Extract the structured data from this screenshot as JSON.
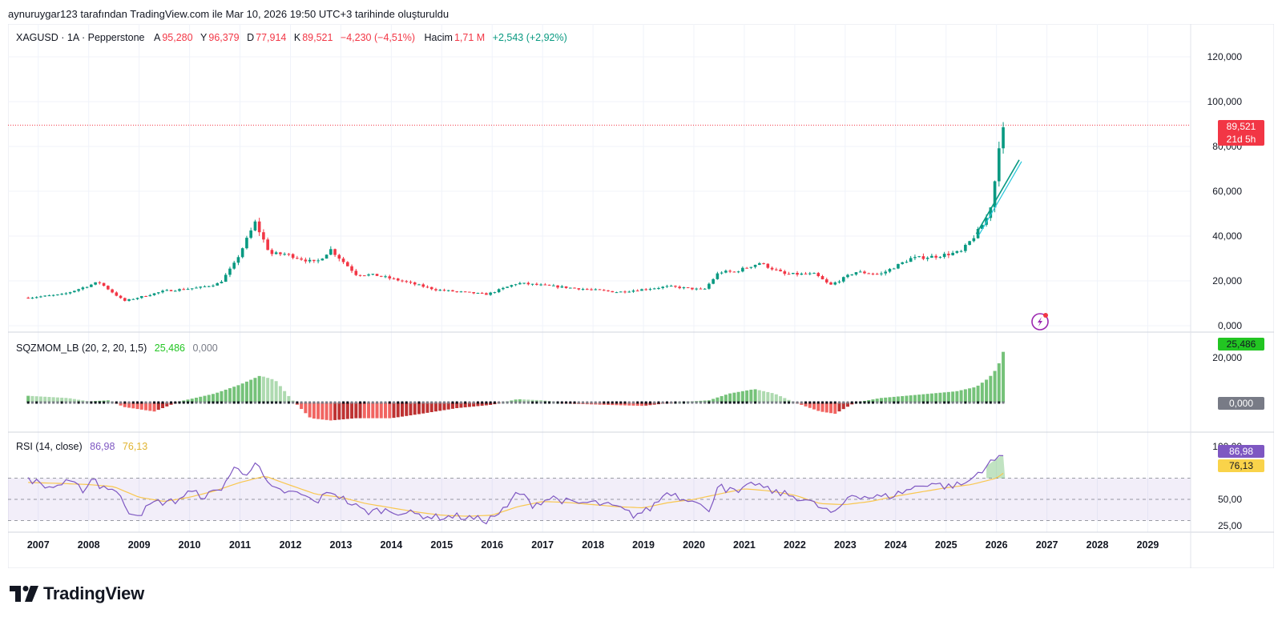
{
  "caption": "aynuruygar123 tarafından TradingView.com ile Mar 10, 2026 19:50 UTC+3 tarihinde oluşturuldu",
  "symbol": {
    "label": "XAGUSD · 1A · Pepperstone",
    "open_label": "A",
    "open": "95,280",
    "high_label": "Y",
    "high": "96,379",
    "low_label": "D",
    "low": "77,914",
    "close_label": "K",
    "close": "89,521",
    "change": "−4,230 (−4,51%)",
    "volume_label": "Hacim",
    "volume": "1,71 M",
    "volume_change": "+2,543 (+2,92%)"
  },
  "price_badge": {
    "price": "89,521",
    "countdown": "21d 5h"
  },
  "sqz": {
    "label": "SQZMOM_LB (20, 2, 20, 1,5)",
    "value": "25,486",
    "zero": "0,000",
    "badge_value": "25,486",
    "badge_zero": "0,000"
  },
  "rsi": {
    "label": "RSI (14, close)",
    "value": "86,98",
    "ma": "76,13",
    "badge_value": "86,98",
    "badge_ma": "76,13"
  },
  "brand": "TradingView",
  "colors": {
    "up": "#089981",
    "down": "#f23645",
    "rsi": "#7e57c2",
    "rsi_ma": "#e0b431",
    "sqz_lime": "#22c522"
  },
  "chart_data": [
    {
      "type": "candlestick",
      "title": "XAGUSD · 1A · Pepperstone",
      "interval": "1 month",
      "x_ticks": [
        "2007",
        "2008",
        "2009",
        "2010",
        "2011",
        "2012",
        "2013",
        "2014",
        "2015",
        "2016",
        "2017",
        "2018",
        "2019",
        "2020",
        "2021",
        "2022",
        "2023",
        "2024",
        "2025",
        "2026",
        "2027",
        "2028",
        "2029"
      ],
      "y_ticks": [
        "0,000",
        "20,000",
        "40,000",
        "60,000",
        "80,000",
        "100,000",
        "120,000"
      ],
      "ylim": [
        0,
        130
      ],
      "last_price": 89.521,
      "anchors": [
        [
          2006.8,
          12.5
        ],
        [
          2007.5,
          14
        ],
        [
          2008.2,
          19.5
        ],
        [
          2008.7,
          11
        ],
        [
          2009.5,
          15.5
        ],
        [
          2010.2,
          17
        ],
        [
          2010.6,
          19
        ],
        [
          2010.9,
          28
        ],
        [
          2011.3,
          46
        ],
        [
          2011.6,
          32
        ],
        [
          2011.9,
          32
        ],
        [
          2012.5,
          28
        ],
        [
          2012.8,
          34
        ],
        [
          2013.3,
          23
        ],
        [
          2013.7,
          22.5
        ],
        [
          2014.2,
          20
        ],
        [
          2014.9,
          16
        ],
        [
          2015.9,
          14
        ],
        [
          2016.5,
          19
        ],
        [
          2017.5,
          17
        ],
        [
          2018.5,
          15
        ],
        [
          2019.5,
          17.5
        ],
        [
          2020.2,
          16
        ],
        [
          2020.5,
          24
        ],
        [
          2020.8,
          24
        ],
        [
          2021.3,
          28
        ],
        [
          2021.8,
          23
        ],
        [
          2022.4,
          23
        ],
        [
          2022.7,
          18
        ],
        [
          2023.2,
          24
        ],
        [
          2023.7,
          23
        ],
        [
          2024.3,
          30
        ],
        [
          2024.8,
          31
        ],
        [
          2025.3,
          33
        ],
        [
          2025.6,
          41
        ],
        [
          2025.8,
          48
        ],
        [
          2025.95,
          58
        ],
        [
          2026.0,
          78
        ],
        [
          2026.08,
          83
        ],
        [
          2026.17,
          89.5
        ]
      ],
      "trendline": [
        [
          2025.6,
          41
        ],
        [
          2026.45,
          74
        ]
      ]
    },
    {
      "type": "bar",
      "title": "SQZMOM_LB (20, 2, 20, 1,5)",
      "y_ticks": [
        "0,000",
        "20,000"
      ],
      "last_value": 25.486,
      "anchors": [
        [
          2006.8,
          3
        ],
        [
          2007.6,
          2
        ],
        [
          2008.0,
          0.5
        ],
        [
          2008.4,
          1
        ],
        [
          2008.7,
          -2
        ],
        [
          2009.3,
          -4
        ],
        [
          2009.8,
          0.5
        ],
        [
          2010.5,
          4
        ],
        [
          2011.0,
          8
        ],
        [
          2011.4,
          12
        ],
        [
          2011.7,
          10
        ],
        [
          2012.0,
          2
        ],
        [
          2012.4,
          -7
        ],
        [
          2012.8,
          -8
        ],
        [
          2013.3,
          -7
        ],
        [
          2014.0,
          -7
        ],
        [
          2014.6,
          -5
        ],
        [
          2015.3,
          -2.5
        ],
        [
          2016.0,
          -1
        ],
        [
          2016.5,
          1.5
        ],
        [
          2017.0,
          1
        ],
        [
          2017.5,
          -0.5
        ],
        [
          2018.2,
          -1
        ],
        [
          2019.0,
          -1.5
        ],
        [
          2019.6,
          0
        ],
        [
          2020.3,
          1
        ],
        [
          2020.7,
          4
        ],
        [
          2021.2,
          6
        ],
        [
          2021.6,
          4
        ],
        [
          2022.0,
          0
        ],
        [
          2022.5,
          -4
        ],
        [
          2022.8,
          -5
        ],
        [
          2023.2,
          0
        ],
        [
          2023.7,
          2
        ],
        [
          2024.2,
          3
        ],
        [
          2024.7,
          4
        ],
        [
          2025.2,
          5
        ],
        [
          2025.6,
          7
        ],
        [
          2025.85,
          11
        ],
        [
          2026.0,
          15
        ],
        [
          2026.1,
          20
        ],
        [
          2026.17,
          25.5
        ]
      ]
    },
    {
      "type": "line",
      "title": "RSI (14, close)",
      "y_ticks": [
        "25,00",
        "50,00",
        "100,00"
      ],
      "bands": [
        30,
        70
      ],
      "last_value": 86.98,
      "last_ma": 76.13,
      "series": [
        {
          "name": "RSI",
          "anchors": [
            [
              2006.8,
              70
            ],
            [
              2007.2,
              61
            ],
            [
              2007.6,
              66
            ],
            [
              2007.9,
              59
            ],
            [
              2008.1,
              72
            ],
            [
              2008.2,
              63
            ],
            [
              2008.5,
              60
            ],
            [
              2008.8,
              39
            ],
            [
              2009.0,
              36
            ],
            [
              2009.3,
              47
            ],
            [
              2009.7,
              48
            ],
            [
              2010.0,
              57
            ],
            [
              2010.3,
              53
            ],
            [
              2010.6,
              59
            ],
            [
              2010.9,
              80
            ],
            [
              2011.1,
              74
            ],
            [
              2011.3,
              85
            ],
            [
              2011.6,
              60
            ],
            [
              2011.9,
              57
            ],
            [
              2012.2,
              55
            ],
            [
              2012.5,
              47
            ],
            [
              2012.8,
              58
            ],
            [
              2013.2,
              46
            ],
            [
              2013.5,
              38
            ],
            [
              2013.8,
              40
            ],
            [
              2014.2,
              38
            ],
            [
              2014.6,
              35
            ],
            [
              2014.9,
              33
            ],
            [
              2015.3,
              34
            ],
            [
              2015.9,
              30
            ],
            [
              2016.3,
              42
            ],
            [
              2016.5,
              58
            ],
            [
              2016.8,
              45
            ],
            [
              2017.2,
              52
            ],
            [
              2017.6,
              46
            ],
            [
              2018.0,
              47
            ],
            [
              2018.5,
              42
            ],
            [
              2018.8,
              35
            ],
            [
              2019.1,
              40
            ],
            [
              2019.5,
              58
            ],
            [
              2019.8,
              50
            ],
            [
              2020.0,
              52
            ],
            [
              2020.3,
              36
            ],
            [
              2020.5,
              70
            ],
            [
              2020.6,
              60
            ],
            [
              2020.9,
              56
            ],
            [
              2021.2,
              66
            ],
            [
              2021.5,
              58
            ],
            [
              2021.8,
              55
            ],
            [
              2022.2,
              50
            ],
            [
              2022.6,
              40
            ],
            [
              2022.8,
              36
            ],
            [
              2023.1,
              55
            ],
            [
              2023.5,
              52
            ],
            [
              2023.9,
              53
            ],
            [
              2024.3,
              60
            ],
            [
              2024.7,
              66
            ],
            [
              2025.0,
              62
            ],
            [
              2025.4,
              65
            ],
            [
              2025.7,
              78
            ],
            [
              2025.9,
              85
            ],
            [
              2026.05,
              90
            ],
            [
              2026.12,
              93
            ],
            [
              2026.17,
              87
            ]
          ]
        },
        {
          "name": "RSI-based MA",
          "anchors": [
            [
              2006.8,
              66
            ],
            [
              2007.5,
              65
            ],
            [
              2008.0,
              64
            ],
            [
              2008.5,
              62
            ],
            [
              2009.0,
              52
            ],
            [
              2009.5,
              48
            ],
            [
              2010.0,
              52
            ],
            [
              2010.5,
              58
            ],
            [
              2011.0,
              66
            ],
            [
              2011.5,
              72
            ],
            [
              2011.9,
              65
            ],
            [
              2012.5,
              55
            ],
            [
              2013.0,
              52
            ],
            [
              2013.5,
              46
            ],
            [
              2014.0,
              42
            ],
            [
              2014.5,
              38
            ],
            [
              2015.0,
              35
            ],
            [
              2015.5,
              34
            ],
            [
              2016.0,
              35
            ],
            [
              2016.5,
              43
            ],
            [
              2017.0,
              48
            ],
            [
              2017.5,
              47
            ],
            [
              2018.0,
              45
            ],
            [
              2018.5,
              43
            ],
            [
              2019.0,
              42
            ],
            [
              2019.5,
              47
            ],
            [
              2020.0,
              50
            ],
            [
              2020.5,
              55
            ],
            [
              2021.0,
              60
            ],
            [
              2021.5,
              58
            ],
            [
              2022.0,
              54
            ],
            [
              2022.5,
              46
            ],
            [
              2023.0,
              45
            ],
            [
              2023.5,
              48
            ],
            [
              2024.0,
              53
            ],
            [
              2024.5,
              57
            ],
            [
              2025.0,
              61
            ],
            [
              2025.5,
              64
            ],
            [
              2026.0,
              70
            ],
            [
              2026.17,
              76
            ]
          ]
        }
      ]
    }
  ]
}
